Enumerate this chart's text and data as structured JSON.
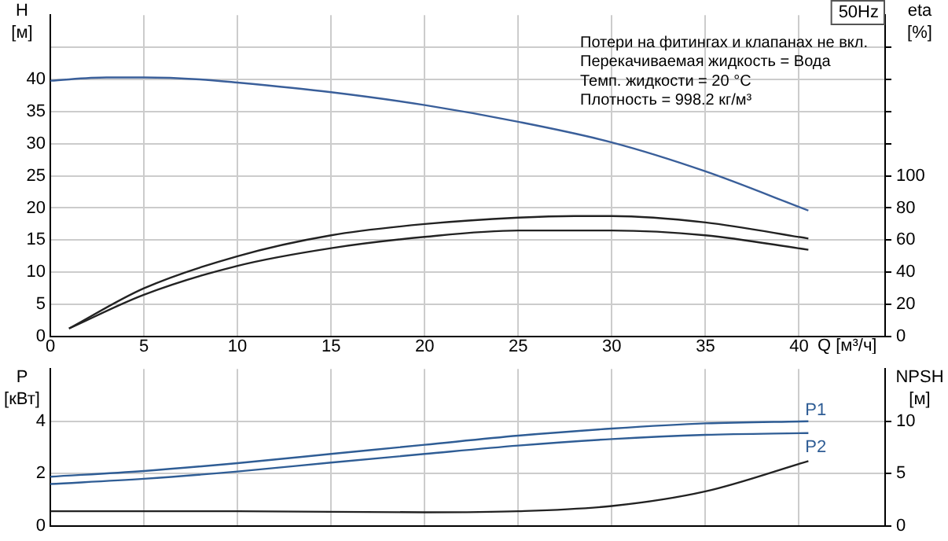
{
  "chart_data": [
    {
      "type": "line",
      "title": "50Hz",
      "xlabel": "Q [м³/ч]",
      "ylabel": "H [м]",
      "y2label": "eta [%]",
      "annotations": [
        "Потери на фитингах и клапанах не вкл.",
        "Перекачиваемая жидкость = Вода",
        "Темп. жидкости = 20 °C",
        "Плотность = 998.2 кг/м³"
      ],
      "xlim": [
        0,
        44.6
      ],
      "xticks": [
        0,
        5,
        10,
        15,
        20,
        25,
        30,
        35,
        40
      ],
      "ylim": [
        0,
        50
      ],
      "yticks": [
        0,
        5,
        10,
        15,
        20,
        25,
        30,
        35,
        40,
        {
          "value": 45,
          "label": null
        }
      ],
      "y2lim": [
        0,
        200
      ],
      "y2ticks": [
        0,
        20,
        40,
        60,
        80,
        100,
        {
          "value": 120,
          "label": null
        },
        {
          "value": 140,
          "label": null
        },
        {
          "value": 160,
          "label": null
        },
        {
          "value": 180,
          "label": null
        }
      ],
      "grid": true,
      "legend": false,
      "marker": "none",
      "series": [
        {
          "color": "#3a5f9a",
          "x": [
            0,
            3,
            5,
            8,
            10,
            15,
            20,
            25,
            30,
            35,
            40.5
          ],
          "values": [
            39.8,
            40.3,
            40.3,
            40,
            39.5,
            38,
            36,
            33.4,
            30.2,
            25.7,
            19.6
          ]
        },
        {
          "color": "#222222",
          "axis": "y2",
          "x": [
            1,
            5,
            10,
            15,
            20,
            25,
            28,
            30,
            35,
            40.5
          ],
          "values": [
            5,
            30,
            50,
            63,
            70,
            74,
            75,
            75,
            71,
            61
          ]
        },
        {
          "color": "#222222",
          "axis": "y2",
          "x": [
            1,
            5,
            10,
            15,
            20,
            25,
            28,
            30,
            35,
            40.5
          ],
          "values": [
            5,
            26,
            44,
            55,
            62,
            66,
            66,
            66,
            63,
            54
          ]
        }
      ]
    },
    {
      "type": "line",
      "ylabel": "P [кВт]",
      "y2label": "NPSH [м]",
      "xlim": [
        0,
        44.6
      ],
      "xticks": [
        0,
        5,
        10,
        15,
        20,
        25,
        30,
        35,
        40
      ],
      "ylim": [
        0,
        6
      ],
      "yticks": [
        0,
        2,
        4
      ],
      "y2lim": [
        0,
        15
      ],
      "y2ticks": [
        0,
        5,
        10
      ],
      "grid": true,
      "legend": false,
      "marker": "none",
      "tick_labels": "y",
      "series": [
        {
          "name": "P1",
          "color": "#2f5d95",
          "x": [
            0,
            5,
            10,
            15,
            20,
            25,
            30,
            35,
            40.5
          ],
          "values": [
            1.88,
            2.1,
            2.4,
            2.75,
            3.1,
            3.45,
            3.72,
            3.92,
            4.0
          ]
        },
        {
          "name": "P2",
          "color": "#2f5d95",
          "x": [
            0,
            5,
            10,
            15,
            20,
            25,
            30,
            35,
            40.5
          ],
          "values": [
            1.6,
            1.8,
            2.08,
            2.42,
            2.75,
            3.07,
            3.32,
            3.48,
            3.55
          ]
        },
        {
          "color": "#222222",
          "axis": "y2",
          "x": [
            0,
            10,
            20,
            25,
            30,
            35,
            40.5
          ],
          "values": [
            1.4,
            1.4,
            1.3,
            1.4,
            1.9,
            3.3,
            6.2
          ]
        }
      ]
    }
  ]
}
